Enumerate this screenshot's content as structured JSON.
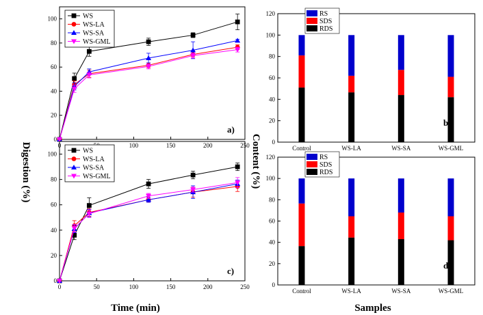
{
  "figure": {
    "left_ylabel": "Digestion (%)",
    "right_ylabel": "Content (%)",
    "left_xlabel": "Time (min)",
    "right_xlabel": "Samples"
  },
  "colors": {
    "WS": "#000000",
    "WS-LA": "#ff0000",
    "WS-SA": "#0000ff",
    "WS-GML": "#ff00ff",
    "RS": "#0000cc",
    "SDS": "#ff0000",
    "RDS": "#000000"
  },
  "chart_data": [
    {
      "panel": "a)",
      "type": "line",
      "xlim": [
        0,
        250
      ],
      "ylim": [
        0,
        110
      ],
      "xticks": [
        0,
        50,
        100,
        150,
        200,
        250
      ],
      "yticks": [
        0,
        20,
        40,
        60,
        80,
        100
      ],
      "legend_position": "top-left",
      "x": [
        0,
        20,
        40,
        120,
        180,
        240
      ],
      "series": [
        {
          "name": "WS",
          "marker": "square",
          "values": [
            0,
            50.5,
            73,
            81,
            86.5,
            97.5
          ],
          "errors": [
            0,
            4.5,
            4,
            3,
            2,
            6.5
          ]
        },
        {
          "name": "WS-LA",
          "marker": "circle",
          "values": [
            0,
            45.5,
            54.5,
            61.5,
            70.5,
            76.5
          ],
          "errors": [
            0,
            3,
            3,
            2,
            2,
            2
          ]
        },
        {
          "name": "WS-SA",
          "marker": "triangle-up",
          "values": [
            0,
            44,
            56,
            67.5,
            74,
            82
          ],
          "errors": [
            0,
            3,
            2.5,
            4,
            7,
            1
          ]
        },
        {
          "name": "WS-GML",
          "marker": "triangle-down",
          "values": [
            0,
            42,
            53.5,
            60.5,
            69.5,
            74.5
          ],
          "errors": [
            0,
            3,
            2.5,
            2,
            2,
            2
          ]
        }
      ]
    },
    {
      "panel": "c)",
      "type": "line",
      "xlim": [
        0,
        250
      ],
      "ylim": [
        0,
        110
      ],
      "xticks": [
        0,
        50,
        100,
        150,
        200,
        250
      ],
      "yticks": [
        0,
        20,
        40,
        60,
        80,
        100
      ],
      "legend_position": "top-left",
      "x": [
        0,
        20,
        40,
        120,
        180,
        240
      ],
      "series": [
        {
          "name": "WS",
          "marker": "square",
          "values": [
            0,
            36,
            59.5,
            76.5,
            83.5,
            90
          ],
          "errors": [
            0,
            3.5,
            6,
            3.5,
            3,
            3
          ]
        },
        {
          "name": "WS-LA",
          "marker": "circle",
          "values": [
            0,
            43.5,
            54,
            64,
            70,
            74.5
          ],
          "errors": [
            0,
            4,
            3,
            2,
            4,
            4
          ]
        },
        {
          "name": "WS-SA",
          "marker": "triangle-up",
          "values": [
            0,
            41,
            53.5,
            64,
            70,
            76.5
          ],
          "errors": [
            0,
            3,
            3,
            2,
            5,
            3
          ]
        },
        {
          "name": "WS-GML",
          "marker": "triangle-down",
          "values": [
            0,
            41.5,
            53,
            67,
            72,
            77.5
          ],
          "errors": [
            0,
            3,
            3,
            2,
            2,
            4
          ]
        }
      ]
    },
    {
      "panel": "b)",
      "type": "bar",
      "stacked": true,
      "ylim": [
        0,
        120
      ],
      "yticks": [
        0,
        20,
        40,
        60,
        80,
        100,
        120
      ],
      "legend_position": "top-left",
      "categories": [
        "Control",
        "WS-LA",
        "WS-SA",
        "WS-GML"
      ],
      "series": [
        {
          "name": "RDS",
          "values": [
            51,
            46.5,
            44,
            42
          ]
        },
        {
          "name": "SDS",
          "values": [
            30,
            15.5,
            23.5,
            19
          ]
        },
        {
          "name": "RS",
          "values": [
            19,
            38,
            32.5,
            39
          ]
        }
      ]
    },
    {
      "panel": "d)",
      "type": "bar",
      "stacked": true,
      "ylim": [
        0,
        120
      ],
      "yticks": [
        0,
        20,
        40,
        60,
        80,
        100,
        120
      ],
      "legend_position": "top-left",
      "categories": [
        "Control",
        "WS-LA",
        "WS-SA",
        "WS-GML"
      ],
      "series": [
        {
          "name": "RDS",
          "values": [
            36.5,
            44.5,
            43,
            42
          ]
        },
        {
          "name": "SDS",
          "values": [
            40,
            20,
            25,
            22.5
          ]
        },
        {
          "name": "RS",
          "values": [
            23.5,
            35.5,
            32,
            35.5
          ]
        }
      ]
    }
  ]
}
